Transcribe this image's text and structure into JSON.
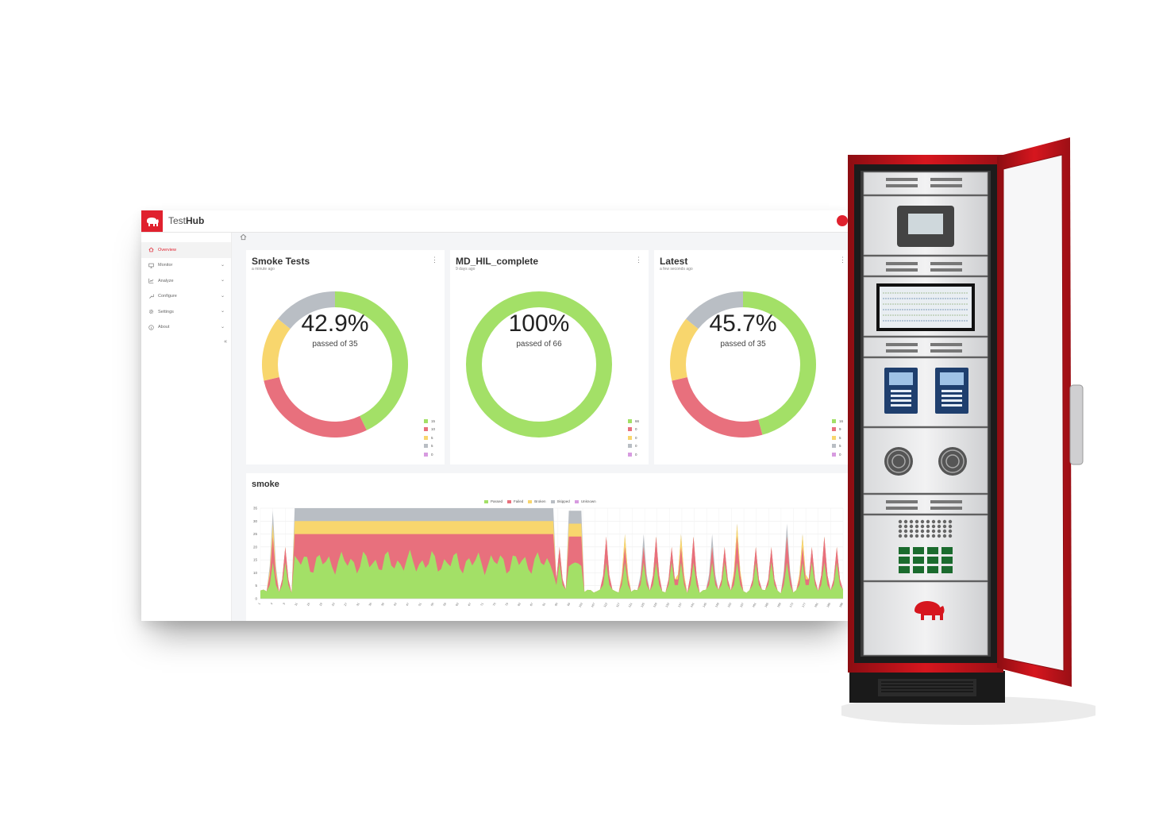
{
  "header": {
    "brand_light": "Test",
    "brand_bold": "Hub"
  },
  "sidebar": {
    "items": [
      {
        "label": "Overview",
        "icon": "home-icon",
        "active": true
      },
      {
        "label": "Monitor",
        "icon": "monitor-icon"
      },
      {
        "label": "Analyze",
        "icon": "chart-icon"
      },
      {
        "label": "Configure",
        "icon": "wrench-icon"
      },
      {
        "label": "Settings",
        "icon": "gear-icon"
      },
      {
        "label": "About",
        "icon": "info-icon"
      }
    ],
    "collapse_label": "«"
  },
  "colors": {
    "accent": "#e0212e",
    "passed": "#a3e067",
    "failed": "#e8707d",
    "broken": "#f8d66d",
    "skipped": "#b9bec4",
    "unknown": "#d79be0"
  },
  "cards": [
    {
      "title": "Smoke Tests",
      "subtitle": "a minute ago",
      "percent_label": "42.9%",
      "passed_label": "passed of 35",
      "values": [
        15,
        10,
        5,
        5,
        0
      ],
      "legend": [
        "15",
        "10",
        "5",
        "5",
        "0"
      ]
    },
    {
      "title": "MD_HIL_complete",
      "subtitle": "9 days ago",
      "percent_label": "100%",
      "passed_label": "passed of 66",
      "values": [
        66,
        0,
        0,
        0,
        0
      ],
      "legend": [
        "66",
        "0",
        "0",
        "0",
        "0"
      ]
    },
    {
      "title": "Latest",
      "subtitle": "a few seconds ago",
      "percent_label": "45.7%",
      "passed_label": "passed of 35",
      "values": [
        16,
        9,
        5,
        5,
        0
      ],
      "legend": [
        "16",
        "9",
        "5",
        "5",
        "0"
      ]
    }
  ],
  "chart_data": {
    "type": "area",
    "title": "smoke",
    "series_names": [
      "Passed",
      "Failed",
      "Broken",
      "Skipped",
      "Unknown"
    ],
    "stacked": true,
    "ylim": [
      0,
      35
    ],
    "yticks": [
      "35",
      "30",
      "25",
      "20",
      "15",
      "10",
      "5",
      "0"
    ],
    "x_range": [
      1,
      188
    ],
    "xticks": [
      "1",
      "4",
      "9",
      "11",
      "15",
      "19",
      "23",
      "27",
      "31",
      "35",
      "39",
      "43",
      "47",
      "51",
      "55",
      "59",
      "63",
      "67",
      "71",
      "75",
      "79",
      "83",
      "87",
      "91",
      "95",
      "99",
      "103",
      "107",
      "112",
      "117",
      "121",
      "125",
      "129",
      "133",
      "137",
      "141",
      "145",
      "149",
      "153",
      "157",
      "161",
      "165",
      "169",
      "173",
      "177",
      "181",
      "185",
      "188"
    ]
  }
}
